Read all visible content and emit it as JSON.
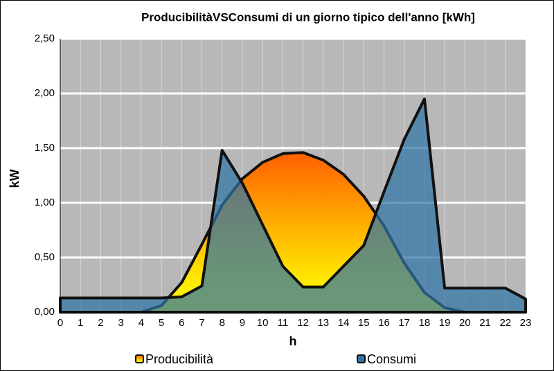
{
  "chart_data": {
    "type": "area",
    "title": "ProducibilitàVSConsumi di un giorno tipico dell'anno [kWh]",
    "x_label": "h",
    "y_label": "kW",
    "categories": [
      "0",
      "1",
      "2",
      "3",
      "4",
      "5",
      "6",
      "7",
      "8",
      "9",
      "10",
      "11",
      "12",
      "13",
      "14",
      "15",
      "16",
      "17",
      "18",
      "19",
      "20",
      "21",
      "22",
      "23"
    ],
    "series": [
      {
        "name": "Producibilità",
        "color": "#ff9900",
        "values": [
          0,
          0,
          0,
          0,
          0,
          0.06,
          0.27,
          0.62,
          0.98,
          1.22,
          1.37,
          1.45,
          1.46,
          1.39,
          1.26,
          1.06,
          0.79,
          0.45,
          0.18,
          0.04,
          0,
          0,
          0,
          0
        ]
      },
      {
        "name": "Consumi",
        "color": "#2f74a6",
        "values": [
          0.13,
          0.13,
          0.13,
          0.13,
          0.13,
          0.13,
          0.14,
          0.24,
          1.48,
          1.18,
          0.8,
          0.42,
          0.23,
          0.23,
          0.42,
          0.61,
          1.1,
          1.58,
          1.95,
          0.22,
          0.22,
          0.22,
          0.22,
          0.12
        ]
      }
    ],
    "ylim": [
      0,
      2.5
    ],
    "yticks": [
      {
        "value": 0,
        "label": "0,00"
      },
      {
        "value": 0.5,
        "label": "0,50"
      },
      {
        "value": 1,
        "label": "1,00"
      },
      {
        "value": 1.5,
        "label": "1,50"
      },
      {
        "value": 2,
        "label": "2,00"
      },
      {
        "value": 2.5,
        "label": "2,50"
      }
    ],
    "grid": true
  }
}
